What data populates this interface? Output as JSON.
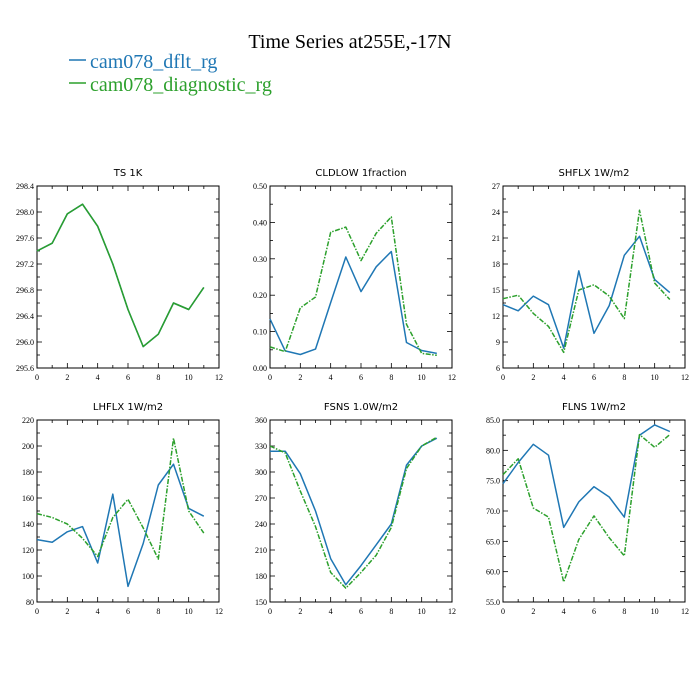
{
  "title": "Time Series at255E,-17N",
  "legend": [
    {
      "name": "cam078_dflt_rg",
      "color": "#1f77b4"
    },
    {
      "name": "cam078_diagnostic_rg",
      "color": "#2ca02c"
    }
  ],
  "chart_data": [
    {
      "type": "line",
      "title": "TS   1K",
      "x": [
        0,
        1,
        2,
        3,
        4,
        5,
        6,
        7,
        8,
        9,
        10,
        11
      ],
      "xlim": [
        0,
        12
      ],
      "xticks": [
        0,
        2,
        4,
        6,
        8,
        10,
        12
      ],
      "ylim": [
        295.6,
        298.4
      ],
      "yticks": [
        "295.6",
        "296.0",
        "296.4",
        "296.8",
        "297.2",
        "297.6",
        "298.0",
        "298.4"
      ],
      "series": [
        {
          "name": "cam078_dflt_rg",
          "color": "#1f77b4",
          "dashed": false,
          "values": [
            297.4,
            297.52,
            297.97,
            298.12,
            297.78,
            297.2,
            296.5,
            295.93,
            296.12,
            296.6,
            296.5,
            296.84
          ]
        },
        {
          "name": "cam078_diagnostic_rg",
          "color": "#2ca02c",
          "dashed": false,
          "values": [
            297.4,
            297.52,
            297.97,
            298.12,
            297.78,
            297.2,
            296.5,
            295.93,
            296.12,
            296.6,
            296.5,
            296.84
          ]
        }
      ]
    },
    {
      "type": "line",
      "title": "CLDLOW   1fraction",
      "x": [
        0,
        1,
        2,
        3,
        4,
        5,
        6,
        7,
        8,
        9,
        10,
        11
      ],
      "xlim": [
        0,
        12
      ],
      "xticks": [
        0,
        2,
        4,
        6,
        8,
        10,
        12
      ],
      "ylim": [
        0,
        0.5
      ],
      "yticks": [
        "0.00",
        "0.10",
        "0.20",
        "0.30",
        "0.40",
        "0.50"
      ],
      "series": [
        {
          "name": "cam078_dflt_rg",
          "color": "#1f77b4",
          "dashed": false,
          "values": [
            0.135,
            0.047,
            0.037,
            0.052,
            0.18,
            0.305,
            0.21,
            0.278,
            0.32,
            0.07,
            0.048,
            0.04
          ]
        },
        {
          "name": "cam078_diagnostic_rg",
          "color": "#2ca02c",
          "dashed": true,
          "values": [
            0.058,
            0.045,
            0.165,
            0.195,
            0.373,
            0.387,
            0.295,
            0.37,
            0.415,
            0.12,
            0.04,
            0.035
          ]
        }
      ]
    },
    {
      "type": "line",
      "title": "SHFLX   1W/m2",
      "x": [
        0,
        1,
        2,
        3,
        4,
        5,
        6,
        7,
        8,
        9,
        10,
        11
      ],
      "xlim": [
        0,
        12
      ],
      "xticks": [
        0,
        2,
        4,
        6,
        8,
        10,
        12
      ],
      "ylim": [
        6,
        27
      ],
      "yticks": [
        "6",
        "9",
        "12",
        "15",
        "18",
        "21",
        "24",
        "27"
      ],
      "series": [
        {
          "name": "cam078_dflt_rg",
          "color": "#1f77b4",
          "dashed": false,
          "values": [
            13.3,
            12.6,
            14.3,
            13.3,
            8.3,
            17.2,
            10.0,
            13.2,
            19.0,
            21.2,
            16.2,
            14.7
          ]
        },
        {
          "name": "cam078_diagnostic_rg",
          "color": "#2ca02c",
          "dashed": true,
          "values": [
            14.0,
            14.4,
            12.3,
            10.8,
            7.8,
            15.0,
            15.6,
            14.3,
            11.7,
            24.2,
            15.8,
            13.9
          ]
        }
      ]
    },
    {
      "type": "line",
      "title": "LHFLX   1W/m2",
      "x": [
        0,
        1,
        2,
        3,
        4,
        5,
        6,
        7,
        8,
        9,
        10,
        11
      ],
      "xlim": [
        0,
        12
      ],
      "xticks": [
        0,
        2,
        4,
        6,
        8,
        10,
        12
      ],
      "ylim": [
        80,
        220
      ],
      "yticks": [
        "80",
        "100",
        "120",
        "140",
        "160",
        "180",
        "200",
        "220"
      ],
      "series": [
        {
          "name": "cam078_dflt_rg",
          "color": "#1f77b4",
          "dashed": false,
          "values": [
            128,
            126,
            134,
            138,
            110,
            163,
            92,
            125,
            170,
            186,
            152,
            146
          ]
        },
        {
          "name": "cam078_diagnostic_rg",
          "color": "#2ca02c",
          "dashed": true,
          "values": [
            148,
            145,
            140,
            129,
            115,
            145,
            159,
            137,
            113,
            206,
            150,
            133
          ]
        }
      ]
    },
    {
      "type": "line",
      "title": "FSNS   1.0W/m2",
      "x": [
        0,
        1,
        2,
        3,
        4,
        5,
        6,
        7,
        8,
        9,
        10,
        11
      ],
      "xlim": [
        0,
        12
      ],
      "xticks": [
        0,
        2,
        4,
        6,
        8,
        10,
        12
      ],
      "ylim": [
        150,
        360
      ],
      "yticks": [
        "150",
        "180",
        "210",
        "240",
        "270",
        "300",
        "330",
        "360"
      ],
      "series": [
        {
          "name": "cam078_dflt_rg",
          "color": "#1f77b4",
          "dashed": false,
          "values": [
            324,
            324,
            298,
            255,
            200,
            170,
            192,
            216,
            240,
            308,
            330,
            339
          ]
        },
        {
          "name": "cam078_diagnostic_rg",
          "color": "#2ca02c",
          "dashed": true,
          "values": [
            330,
            322,
            278,
            237,
            184,
            166,
            184,
            204,
            236,
            304,
            330,
            340
          ]
        }
      ]
    },
    {
      "type": "line",
      "title": "FLNS   1W/m2",
      "x": [
        0,
        1,
        2,
        3,
        4,
        5,
        6,
        7,
        8,
        9,
        10,
        11
      ],
      "xlim": [
        0,
        12
      ],
      "xticks": [
        0,
        2,
        4,
        6,
        8,
        10,
        12
      ],
      "ylim": [
        55,
        85
      ],
      "yticks": [
        "55.0",
        "60.0",
        "65.0",
        "70.0",
        "75.0",
        "80.0",
        "85.0"
      ],
      "series": [
        {
          "name": "cam078_dflt_rg",
          "color": "#1f77b4",
          "dashed": false,
          "values": [
            74.5,
            78.0,
            81.0,
            79.2,
            67.3,
            71.5,
            74.0,
            72.3,
            69.0,
            82.5,
            84.2,
            83.1
          ]
        },
        {
          "name": "cam078_diagnostic_rg",
          "color": "#2ca02c",
          "dashed": true,
          "values": [
            76.0,
            78.6,
            70.5,
            69.0,
            58.3,
            65.3,
            69.2,
            65.6,
            62.6,
            82.6,
            80.5,
            82.6
          ]
        }
      ]
    }
  ]
}
